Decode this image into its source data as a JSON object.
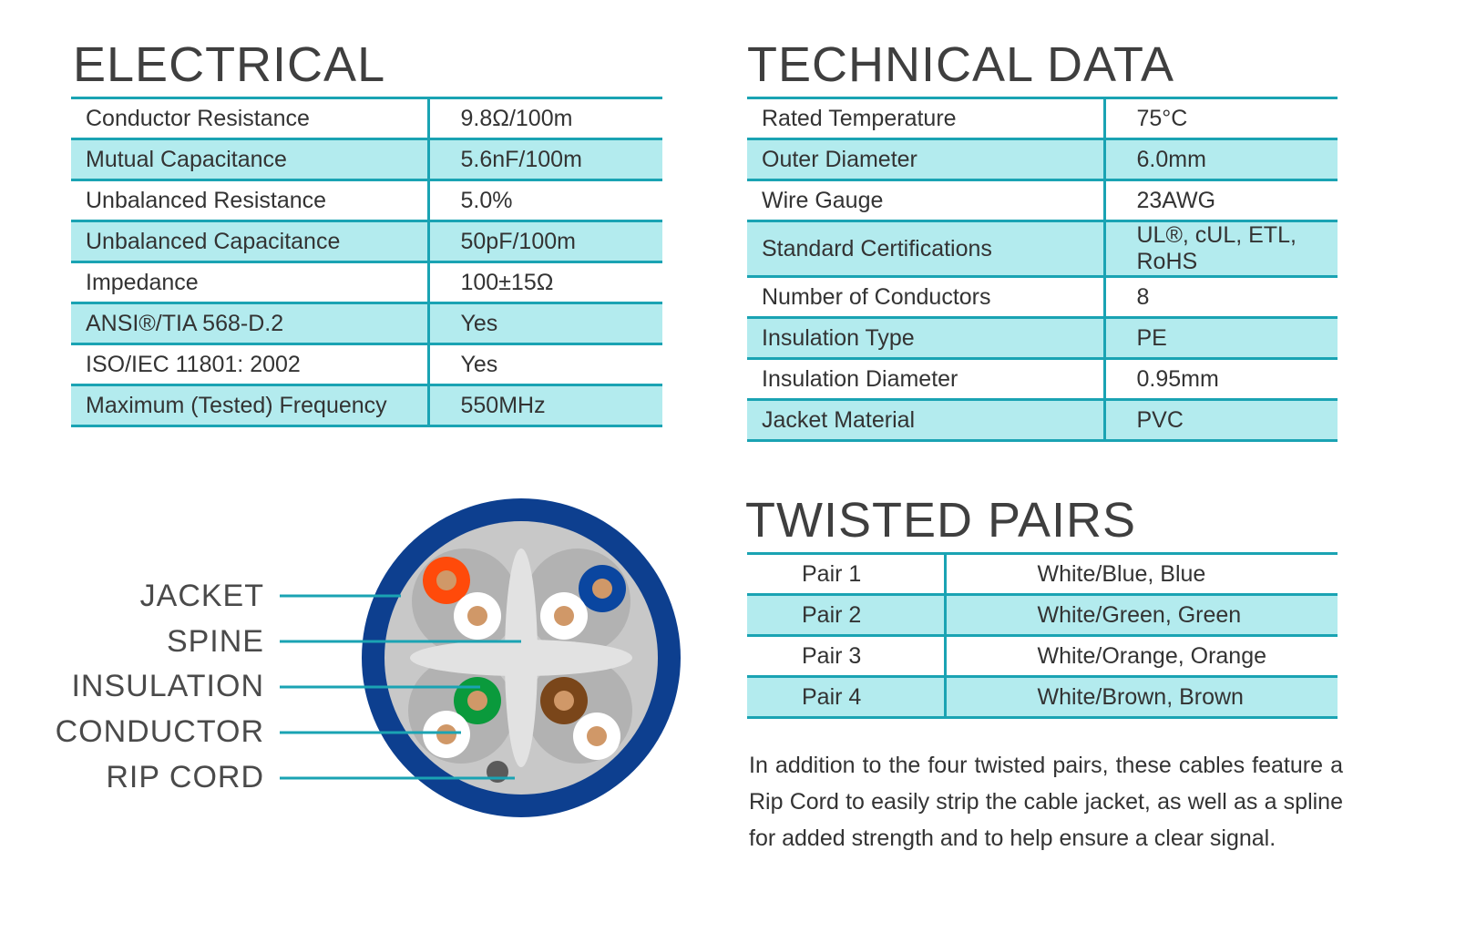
{
  "electrical": {
    "title": "ELECTRICAL",
    "rows": [
      {
        "label": "Conductor Resistance",
        "value": "9.8Ω/100m"
      },
      {
        "label": "Mutual Capacitance",
        "value": "5.6nF/100m"
      },
      {
        "label": "Unbalanced Resistance",
        "value": "5.0%"
      },
      {
        "label": "Unbalanced Capacitance",
        "value": "50pF/100m"
      },
      {
        "label": "Impedance",
        "value": "100±15Ω"
      },
      {
        "label": "ANSI®/TIA 568-D.2",
        "value": "Yes"
      },
      {
        "label": "ISO/IEC 11801: 2002",
        "value": "Yes"
      },
      {
        "label": "Maximum (Tested) Frequency",
        "value": "550MHz"
      }
    ]
  },
  "technical": {
    "title": "TECHNICAL DATA",
    "rows": [
      {
        "label": "Rated Temperature",
        "value": "75°C"
      },
      {
        "label": "Outer Diameter",
        "value": "6.0mm"
      },
      {
        "label": "Wire Gauge",
        "value": "23AWG"
      },
      {
        "label": "Standard Certifications",
        "value": "UL®, cUL, ETL, RoHS"
      },
      {
        "label": "Number of Conductors",
        "value": "8"
      },
      {
        "label": "Insulation Type",
        "value": "PE"
      },
      {
        "label": "Insulation Diameter",
        "value": "0.95mm"
      },
      {
        "label": "Jacket Material",
        "value": "PVC"
      }
    ]
  },
  "twisted": {
    "title": "TWISTED PAIRS",
    "rows": [
      {
        "label": "Pair 1",
        "value": "White/Blue, Blue"
      },
      {
        "label": "Pair 2",
        "value": "White/Green, Green"
      },
      {
        "label": "Pair 3",
        "value": "White/Orange, Orange"
      },
      {
        "label": "Pair 4",
        "value": "White/Brown, Brown"
      }
    ],
    "description": "In addition to the four twisted pairs, these cables feature a Rip Cord to easily strip the cable jacket, as well as a spline for added strength and to help ensure a clear signal."
  },
  "diagram": {
    "labels": [
      "JACKET",
      "SPINE",
      "INSULATION",
      "CONDUCTOR",
      "RIP CORD"
    ],
    "colors": {
      "jacket": "#0d3f8f",
      "accent": "#1aa3b3",
      "orange": "#ff4a0a",
      "blue": "#0a46a0",
      "green": "#0a9a3c",
      "brown": "#7a461a",
      "copper": "#d09868"
    }
  }
}
